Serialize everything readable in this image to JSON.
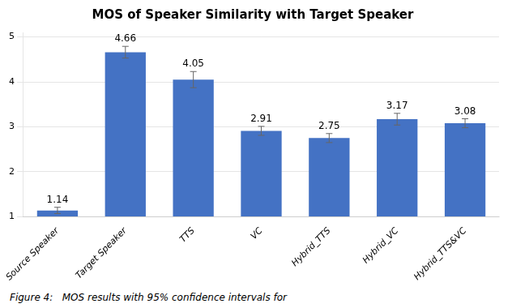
{
  "chart_data": {
    "type": "bar",
    "title": "MOS of Speaker Similarity with Target Speaker",
    "categories": [
      "Source Speaker",
      "Target Speaker",
      "TTS",
      "VC",
      "Hybrid_TTS",
      "Hybrid_VC",
      "Hybrid_TTS&VC"
    ],
    "values": [
      1.14,
      4.66,
      4.05,
      2.91,
      2.75,
      3.17,
      3.08
    ],
    "errors": [
      0.07,
      0.13,
      0.18,
      0.1,
      0.1,
      0.13,
      0.1
    ],
    "color": "#4472C4",
    "ylim": [
      1,
      5.1
    ],
    "yticks": [
      1,
      2,
      3,
      4,
      5
    ],
    "grid": true,
    "data_labels": true,
    "caption": "Figure 4:   MOS results with 95% confidence intervals for"
  }
}
